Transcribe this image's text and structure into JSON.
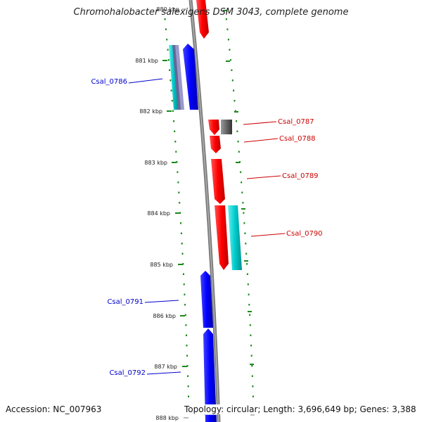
{
  "title": "Chromohalobacter salexigens DSM 3043, complete genome",
  "accession": "Accession: NC_007963",
  "topology": "Topology: circular; Length: 3,696,649 bp; Genes: 3,388",
  "top_clipped_label": "880 kbp",
  "kbp_labels": [
    "881 kbp",
    "882 kbp",
    "883 kbp",
    "884 kbp",
    "885 kbp",
    "886 kbp",
    "887 kbp",
    "888 kbp"
  ],
  "gene_labels": [
    {
      "text": "Csal_0786",
      "color": "#0000cc"
    },
    {
      "text": "Csal_0787",
      "color": "#cc0000"
    },
    {
      "text": "Csal_0788",
      "color": "#cc0000"
    },
    {
      "text": "Csal_0789",
      "color": "#cc0000"
    },
    {
      "text": "Csal_0790",
      "color": "#cc0000"
    },
    {
      "text": "Csal_0791",
      "color": "#0000cc"
    },
    {
      "text": "Csal_0792",
      "color": "#0000cc"
    }
  ],
  "colors": {
    "forward": "#ff0000",
    "reverse": "#0000ff",
    "rna": "#00cccc",
    "other": "#666666",
    "ticks": "#1a8a1a",
    "backbone": "#888888"
  }
}
